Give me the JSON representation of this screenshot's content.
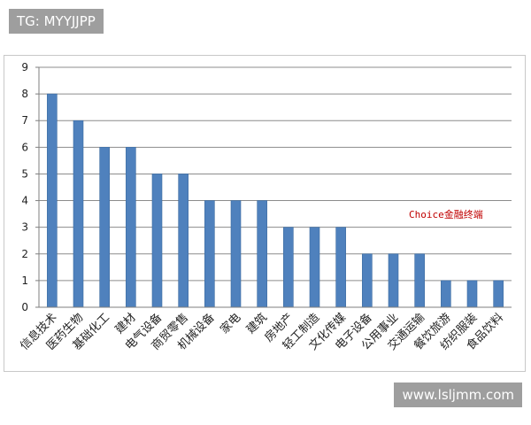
{
  "watermark_top": "TG: MYYJJPP",
  "watermark_bottom": "www.lsljmm.com",
  "brand_label": "Choice金融终端",
  "colors": {
    "bar": "#4f81bd",
    "bar_edge": "#3a6a9f",
    "grid": "#8c8c8c",
    "axis": "#7f7f7f"
  },
  "chart_data": {
    "type": "bar",
    "title": "",
    "xlabel": "",
    "ylabel": "",
    "ylim": [
      0,
      9
    ],
    "yticks": [
      "0",
      "1",
      "2",
      "3",
      "4",
      "5",
      "6",
      "7",
      "8",
      "9"
    ],
    "grid": true,
    "categories": [
      "信息技术",
      "医药生物",
      "基础化工",
      "建材",
      "电气设备",
      "商贸零售",
      "机械设备",
      "家电",
      "建筑",
      "房地产",
      "轻工制造",
      "文化传媒",
      "电子设备",
      "公用事业",
      "交通运输",
      "餐饮旅游",
      "纺织服装",
      "食品饮料"
    ],
    "values": [
      8,
      7,
      6,
      6,
      5,
      5,
      4,
      4,
      4,
      3,
      3,
      3,
      2,
      2,
      2,
      1,
      1,
      1
    ]
  }
}
